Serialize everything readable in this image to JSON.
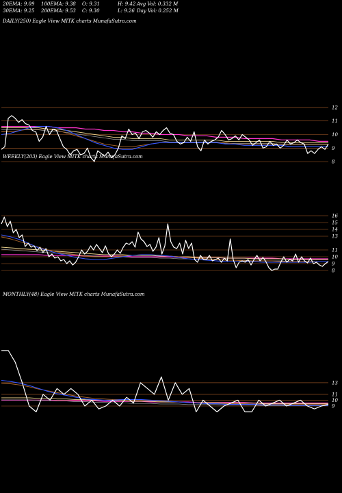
{
  "header": {
    "ema20": "20EMA: 9.09",
    "ema100": "100EMA: 9.38",
    "open": "O: 9.31",
    "high": "H: 9.42",
    "avg_vol": "Avg Vol: 0.332  M",
    "ema30": "30EMA: 9.25",
    "ema200": "200EMA: 9.53",
    "close": "C: 9.30",
    "low": "L: 9.26",
    "day_vol": "Day Vol: 0.252  M"
  },
  "panels": [
    {
      "label": "DAILY(250) Eagle  View  MITK charts MunafaSutra.com",
      "ticks": [
        "12",
        "11",
        "10",
        "9",
        "8"
      ],
      "tick_values": [
        12,
        11,
        10,
        9,
        8
      ],
      "ylim": [
        7.8,
        12.6
      ]
    },
    {
      "label": "WEEKLY(203) Eagle  View  MITK charts MunafaSutra.com",
      "ticks": [
        "16",
        "15",
        "14",
        "13",
        "11",
        "10",
        "9",
        "8"
      ],
      "tick_values": [
        16,
        15,
        14,
        13,
        11,
        10,
        9,
        8
      ],
      "ylim": [
        7.5,
        17
      ]
    },
    {
      "label": "MONTHLY(48) Eagle  View  MITK charts MunafaSutra.com",
      "ticks": [
        "13",
        "11",
        "10",
        "9"
      ],
      "tick_values": [
        13,
        11,
        10,
        9
      ],
      "ylim": [
        7,
        20.5
      ]
    }
  ],
  "colors": {
    "price": "#ffffff",
    "ema20": "#3355ff",
    "ema30": "#b06a2c",
    "ema100": "#e8d08a",
    "ema200": "#ff33cc",
    "extra": "#999999",
    "gridline": "#b0602a"
  },
  "chart_data": [
    {
      "type": "line",
      "title": "DAILY(250) Eagle  View  MITK charts MunafaSutra.com",
      "ylim": [
        7.8,
        12.6
      ],
      "grid": true,
      "series": [
        {
          "name": "Price",
          "values": [
            8.9,
            9.1,
            11.2,
            11.4,
            11.2,
            10.9,
            11.1,
            10.8,
            10.7,
            10.3,
            10.2,
            9.5,
            9.8,
            10.6,
            10.0,
            10.4,
            10.3,
            9.7,
            9.1,
            8.9,
            8.5,
            8.8,
            8.9,
            8.5,
            8.6,
            9.0,
            8.3,
            8.0,
            8.8,
            8.6,
            8.4,
            8.7,
            8.3,
            8.5,
            9.0,
            9.9,
            9.7,
            10.4,
            10.0,
            10.1,
            9.7,
            10.2,
            10.3,
            10.1,
            9.8,
            10.2,
            10.0,
            10.3,
            10.5,
            10.1,
            10.0,
            9.5,
            9.3,
            9.4,
            9.8,
            9.5,
            10.2,
            9.1,
            8.8,
            9.6,
            9.3,
            9.5,
            9.6,
            9.8,
            10.3,
            10.0,
            9.6,
            9.7,
            9.9,
            9.6,
            10.0,
            9.8,
            9.6,
            9.2,
            9.4,
            9.6,
            9.0,
            9.1,
            9.5,
            9.2,
            9.3,
            9.0,
            9.2,
            9.6,
            9.3,
            9.4,
            9.6,
            9.4,
            9.3,
            8.6,
            8.8,
            8.6,
            8.9,
            9.1,
            8.9,
            9.3
          ]
        },
        {
          "name": "20EMA",
          "values": [
            10.0,
            10.1,
            10.3,
            10.5,
            10.6,
            10.6,
            10.5,
            10.3,
            10.0,
            9.7,
            9.4,
            9.2,
            9.0,
            8.9,
            8.9,
            9.1,
            9.3,
            9.4,
            9.4,
            9.4,
            9.4,
            9.4,
            9.4,
            9.4,
            9.3,
            9.3,
            9.2,
            9.2,
            9.2,
            9.2,
            9.2,
            9.1,
            9.1,
            9.1,
            9.1,
            9.1
          ]
        },
        {
          "name": "30EMA",
          "values": [
            10.2,
            10.2,
            10.3,
            10.4,
            10.4,
            10.4,
            10.3,
            10.1,
            9.9,
            9.7,
            9.5,
            9.3,
            9.2,
            9.1,
            9.1,
            9.2,
            9.3,
            9.4,
            9.4,
            9.4,
            9.4,
            9.4,
            9.4,
            9.4,
            9.4,
            9.3,
            9.3,
            9.3,
            9.3,
            9.3,
            9.3,
            9.3,
            9.3,
            9.3,
            9.3,
            9.3
          ]
        },
        {
          "name": "100EMA",
          "values": [
            10.5,
            10.5,
            10.5,
            10.5,
            10.5,
            10.4,
            10.4,
            10.3,
            10.2,
            10.1,
            10.0,
            9.9,
            9.8,
            9.8,
            9.7,
            9.7,
            9.7,
            9.7,
            9.6,
            9.6,
            9.6,
            9.6,
            9.6,
            9.6,
            9.5,
            9.5,
            9.5,
            9.5,
            9.5,
            9.5,
            9.4,
            9.4,
            9.4,
            9.4,
            9.4,
            9.4
          ]
        },
        {
          "name": "200EMA",
          "values": [
            10.6,
            10.6,
            10.6,
            10.6,
            10.6,
            10.6,
            10.5,
            10.5,
            10.5,
            10.4,
            10.4,
            10.3,
            10.3,
            10.2,
            10.2,
            10.1,
            10.1,
            10.0,
            10.0,
            10.0,
            9.9,
            9.9,
            9.9,
            9.8,
            9.8,
            9.8,
            9.7,
            9.7,
            9.7,
            9.7,
            9.6,
            9.6,
            9.6,
            9.6,
            9.5,
            9.5
          ]
        }
      ]
    },
    {
      "type": "line",
      "title": "WEEKLY(203) Eagle  View  MITK charts MunafaSutra.com",
      "ylim": [
        7.5,
        17
      ],
      "grid": true,
      "series": [
        {
          "name": "Price",
          "values": [
            14.8,
            15.8,
            14.4,
            15.2,
            13.5,
            14.0,
            12.8,
            13.2,
            11.5,
            12.0,
            11.4,
            11.6,
            10.9,
            11.4,
            10.6,
            11.2,
            10.0,
            10.4,
            9.8,
            10.0,
            9.4,
            9.6,
            9.0,
            9.4,
            8.8,
            9.2,
            10.0,
            11.0,
            10.4,
            10.8,
            11.6,
            11.0,
            11.8,
            11.2,
            10.6,
            11.6,
            10.5,
            10.0,
            10.4,
            11.0,
            10.5,
            11.4,
            12.0,
            11.8,
            12.2,
            11.4,
            13.6,
            12.6,
            12.2,
            11.5,
            11.8,
            10.8,
            11.4,
            12.8,
            10.4,
            11.6,
            14.8,
            12.2,
            11.4,
            11.2,
            12.0,
            10.4,
            12.4,
            11.2,
            12.0,
            9.6,
            9.2,
            10.2,
            9.6,
            9.6,
            10.2,
            9.4,
            9.6,
            9.8,
            9.2,
            9.8,
            9.4,
            12.6,
            9.6,
            8.4,
            9.2,
            9.4,
            9.2,
            9.6,
            8.8,
            9.6,
            10.2,
            9.4,
            9.9,
            9.3,
            8.4,
            8.0,
            8.2,
            8.2,
            9.2,
            10.0,
            9.2,
            9.6,
            9.4,
            10.4,
            9.2,
            10.0,
            9.4,
            9.1,
            9.8,
            9.0,
            9.2,
            8.8,
            8.6,
            9.0,
            9.3
          ]
        },
        {
          "name": "20EMA",
          "values": [
            13.2,
            12.9,
            12.5,
            11.9,
            11.3,
            10.9,
            10.5,
            10.2,
            9.9,
            9.7,
            9.6,
            9.6,
            9.8,
            10.0,
            10.2,
            10.3,
            10.3,
            10.2,
            10.1,
            9.9,
            9.7,
            9.6,
            9.5,
            9.4,
            9.3,
            9.3,
            9.3,
            9.3,
            9.2,
            9.2,
            9.2,
            9.2,
            9.2,
            9.2,
            9.3,
            9.3
          ]
        },
        {
          "name": "30EMA",
          "values": [
            12.9,
            12.6,
            12.2,
            11.8,
            11.4,
            11.0,
            10.7,
            10.5,
            10.3,
            10.1,
            10.0,
            10.0,
            10.0,
            10.1,
            10.2,
            10.3,
            10.3,
            10.2,
            10.1,
            10.0,
            9.9,
            9.8,
            9.7,
            9.6,
            9.5,
            9.5,
            9.4,
            9.4,
            9.4,
            9.4,
            9.3,
            9.3,
            9.3,
            9.3,
            9.3,
            9.3
          ]
        },
        {
          "name": "100EMA",
          "values": [
            11.4,
            11.3,
            11.2,
            11.1,
            11.0,
            10.9,
            10.8,
            10.7,
            10.6,
            10.5,
            10.4,
            10.3,
            10.3,
            10.3,
            10.2,
            10.2,
            10.2,
            10.1,
            10.1,
            10.0,
            10.0,
            9.9,
            9.9,
            9.9,
            9.8,
            9.8,
            9.8,
            9.7,
            9.7,
            9.7,
            9.7,
            9.6,
            9.6,
            9.6,
            9.6,
            9.6
          ]
        },
        {
          "name": "200EMA",
          "values": [
            10.3,
            10.3,
            10.3,
            10.3,
            10.3,
            10.2,
            10.2,
            10.2,
            10.2,
            10.1,
            10.1,
            10.1,
            10.1,
            10.1,
            10.0,
            10.0,
            10.0,
            10.0,
            10.0,
            9.9,
            9.9,
            9.9,
            9.9,
            9.9,
            9.8,
            9.8,
            9.8,
            9.8,
            9.8,
            9.8,
            9.7,
            9.7,
            9.7,
            9.7,
            9.7,
            9.7
          ]
        }
      ]
    },
    {
      "type": "line",
      "title": "MONTHLY(48) Eagle  View  MITK charts MunafaSutra.com",
      "ylim": [
        7,
        20.5
      ],
      "grid": true,
      "series": [
        {
          "name": "Price",
          "values": [
            18.5,
            18.5,
            16.5,
            13.0,
            9.0,
            8.0,
            11.0,
            10.0,
            12.0,
            11.0,
            12.0,
            11.0,
            9.0,
            10.0,
            8.5,
            9.0,
            10.0,
            9.0,
            10.5,
            9.5,
            13.0,
            12.0,
            11.0,
            14.0,
            10.0,
            13.0,
            11.0,
            12.0,
            8.0,
            10.0,
            9.0,
            8.0,
            9.0,
            9.5,
            10.0,
            8.0,
            8.0,
            10.0,
            9.0,
            9.5,
            10.0,
            9.0,
            9.5,
            10.0,
            9.0,
            8.5,
            9.0,
            9.3
          ]
        },
        {
          "name": "20EMA",
          "values": [
            13.4,
            13.2,
            12.9,
            12.5,
            12.0,
            11.5,
            11.1,
            10.8,
            10.5,
            10.2,
            10.1,
            10.0,
            10.0,
            10.1,
            10.1,
            10.1,
            10.0,
            9.9,
            9.8,
            9.7,
            9.6,
            9.5,
            9.4,
            9.4,
            9.3,
            9.3,
            9.3,
            9.3,
            9.2,
            9.2,
            9.2,
            9.1,
            9.1,
            9.1,
            9.1,
            9.1
          ]
        },
        {
          "name": "30EMA",
          "values": [
            12.9,
            12.8,
            12.6,
            12.3,
            11.9,
            11.6,
            11.3,
            11.0,
            10.7,
            10.5,
            10.3,
            10.2,
            10.1,
            10.1,
            10.0,
            10.0,
            9.9,
            9.8,
            9.8,
            9.7,
            9.6,
            9.6,
            9.5,
            9.5,
            9.4,
            9.4,
            9.4,
            9.3,
            9.3,
            9.3,
            9.3,
            9.3,
            9.3,
            9.3,
            9.3,
            9.3
          ]
        },
        {
          "name": "100EMA",
          "values": [
            10.4,
            10.4,
            10.4,
            10.4,
            10.3,
            10.3,
            10.2,
            10.2,
            10.1,
            10.1,
            10.0,
            10.0,
            9.9,
            9.9,
            9.8,
            9.8,
            9.8,
            9.7,
            9.7,
            9.7,
            9.6,
            9.6,
            9.6,
            9.6,
            9.5,
            9.5,
            9.5,
            9.5,
            9.4,
            9.4,
            9.4,
            9.4,
            9.4,
            9.4,
            9.4,
            9.4
          ]
        },
        {
          "name": "200EMA",
          "values": [
            10.0,
            10.0,
            10.0,
            10.0,
            10.0,
            10.0,
            9.9,
            9.9,
            9.9,
            9.9,
            9.9,
            9.8,
            9.8,
            9.8,
            9.8,
            9.8,
            9.7,
            9.7,
            9.7,
            9.7,
            9.7,
            9.6,
            9.6,
            9.6,
            9.6,
            9.6,
            9.6,
            9.5,
            9.5,
            9.5,
            9.5,
            9.5,
            9.5,
            9.5,
            9.5,
            9.5
          ]
        }
      ]
    }
  ]
}
